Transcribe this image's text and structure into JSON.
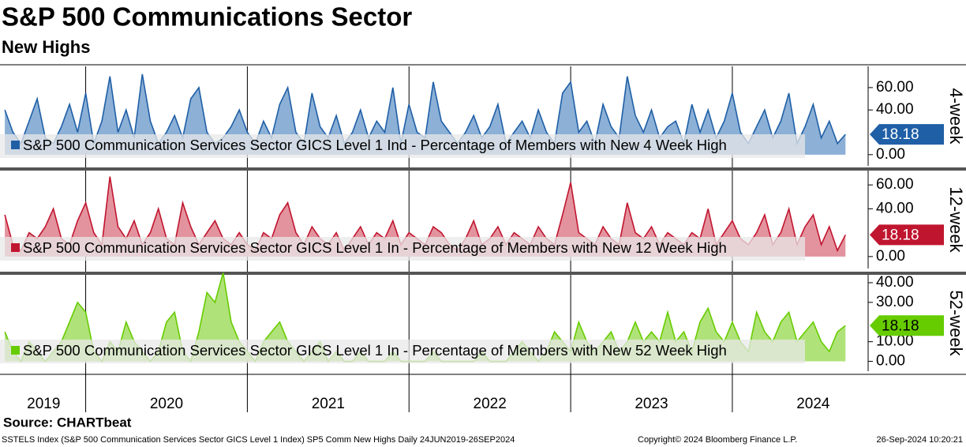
{
  "chart_data": {
    "type": "line",
    "title": "S&P 500 Communications Sector",
    "subtitle": "New Highs",
    "x": [
      2019.5,
      2019.55,
      2019.6,
      2019.65,
      2019.7,
      2019.75,
      2019.8,
      2019.85,
      2019.9,
      2019.95,
      2020,
      2020.05,
      2020.1,
      2020.15,
      2020.2,
      2020.25,
      2020.3,
      2020.35,
      2020.4,
      2020.45,
      2020.5,
      2020.55,
      2020.6,
      2020.65,
      2020.7,
      2020.75,
      2020.8,
      2020.85,
      2020.9,
      2020.95,
      2021,
      2021.05,
      2021.1,
      2021.15,
      2021.2,
      2021.25,
      2021.3,
      2021.35,
      2021.4,
      2021.45,
      2021.5,
      2021.55,
      2021.6,
      2021.65,
      2021.7,
      2021.75,
      2021.8,
      2021.85,
      2021.9,
      2021.95,
      2022,
      2022.05,
      2022.1,
      2022.15,
      2022.2,
      2022.25,
      2022.3,
      2022.35,
      2022.4,
      2022.45,
      2022.5,
      2022.55,
      2022.6,
      2022.65,
      2022.7,
      2022.75,
      2022.8,
      2022.85,
      2022.9,
      2022.95,
      2023,
      2023.05,
      2023.1,
      2023.15,
      2023.2,
      2023.25,
      2023.3,
      2023.35,
      2023.4,
      2023.45,
      2023.5,
      2023.55,
      2023.6,
      2023.65,
      2023.7,
      2023.75,
      2023.8,
      2023.85,
      2023.9,
      2023.95,
      2024,
      2024.05,
      2024.1,
      2024.15,
      2024.2,
      2024.25,
      2024.3,
      2024.35,
      2024.4,
      2024.45,
      2024.5,
      2024.55,
      2024.6,
      2024.65,
      2024.7
    ],
    "xlim": [
      2019.47,
      2024.84
    ],
    "xticks": [
      {
        "value": 2019.74,
        "label": "2019"
      },
      {
        "value": 2020.5,
        "label": "2020"
      },
      {
        "value": 2021.5,
        "label": "2021"
      },
      {
        "value": 2022.5,
        "label": "2022"
      },
      {
        "value": 2023.5,
        "label": "2023"
      },
      {
        "value": 2024.5,
        "label": "2024"
      }
    ],
    "year_lines": [
      2020,
      2021,
      2022,
      2023,
      2024
    ],
    "panels": [
      {
        "label": "4-week",
        "ylim": [
          -10,
          79
        ],
        "yticks": [
          {
            "value": 0,
            "label": "0.00"
          },
          {
            "value": 40,
            "label": "40.00"
          },
          {
            "value": 60,
            "label": "60.00"
          }
        ],
        "series": [
          {
            "name": "S&P 500 Communication Services Sector GICS Level 1 Ind - Percentage of Members with New 4 Week High",
            "color": "#1f5fa6",
            "fill_color": "#8cb0d6",
            "values": [
              40,
              20,
              10,
              30,
              50,
              15,
              10,
              25,
              45,
              20,
              55,
              10,
              30,
              70,
              20,
              40,
              15,
              72,
              30,
              10,
              20,
              35,
              15,
              50,
              60,
              20,
              10,
              15,
              25,
              40,
              20,
              10,
              30,
              15,
              45,
              60,
              20,
              10,
              55,
              25,
              15,
              35,
              10,
              20,
              40,
              15,
              30,
              20,
              60,
              10,
              45,
              20,
              15,
              65,
              30,
              20,
              10,
              20,
              35,
              15,
              25,
              45,
              10,
              20,
              30,
              15,
              40,
              20,
              10,
              55,
              65,
              20,
              30,
              10,
              45,
              25,
              15,
              70,
              35,
              20,
              40,
              15,
              25,
              30,
              10,
              45,
              20,
              40,
              15,
              30,
              55,
              20,
              10,
              25,
              40,
              15,
              30,
              55,
              10,
              25,
              45,
              15,
              30,
              10,
              18.18
            ]
          }
        ]
      },
      {
        "label": "12-week",
        "ylim": [
          -10,
          72
        ],
        "yticks": [
          {
            "value": 0,
            "label": "0.00"
          },
          {
            "value": 40,
            "label": "40.00"
          },
          {
            "value": 60,
            "label": "60.00"
          }
        ],
        "series": [
          {
            "name": "S&P 500 Communication Services Sector GICS Level 1 In - Percentage of Members with New 12 Week High",
            "color": "#c0152f",
            "fill_color": "#e3939e",
            "values": [
              35,
              10,
              5,
              20,
              15,
              25,
              40,
              15,
              10,
              30,
              45,
              20,
              10,
              67,
              25,
              15,
              30,
              10,
              20,
              40,
              15,
              10,
              45,
              25,
              10,
              20,
              30,
              15,
              10,
              20,
              10,
              5,
              20,
              15,
              35,
              45,
              20,
              10,
              25,
              15,
              10,
              20,
              5,
              15,
              25,
              10,
              20,
              15,
              30,
              10,
              20,
              15,
              10,
              25,
              20,
              10,
              5,
              15,
              30,
              10,
              15,
              25,
              10,
              20,
              15,
              10,
              25,
              15,
              10,
              35,
              62,
              20,
              15,
              10,
              25,
              15,
              10,
              45,
              20,
              15,
              25,
              10,
              20,
              15,
              10,
              20,
              15,
              40,
              10,
              20,
              30,
              15,
              10,
              20,
              35,
              10,
              20,
              40,
              10,
              25,
              35,
              10,
              25,
              5,
              18.18
            ]
          }
        ]
      },
      {
        "label": "52-week",
        "ylim": [
          -5,
          44
        ],
        "yticks": [
          {
            "value": 0,
            "label": "0.00"
          },
          {
            "value": 10,
            "label": "10.00"
          },
          {
            "value": 30,
            "label": "30.00"
          },
          {
            "value": 40,
            "label": "40.00"
          }
        ],
        "series": [
          {
            "name": "S&P 500 Communication Services Sector GICS Level 1 In - Percentage of Members with New 52 Week High",
            "color": "#66cc00",
            "fill_color": "#b0e27a",
            "values": [
              15,
              5,
              0,
              10,
              5,
              0,
              5,
              10,
              20,
              30,
              25,
              5,
              0,
              10,
              5,
              20,
              10,
              5,
              0,
              5,
              20,
              25,
              5,
              0,
              15,
              35,
              30,
              45,
              20,
              10,
              5,
              0,
              10,
              15,
              20,
              10,
              5,
              0,
              5,
              10,
              0,
              5,
              0,
              0,
              5,
              0,
              0,
              0,
              5,
              0,
              0,
              0,
              0,
              5,
              0,
              0,
              0,
              0,
              0,
              5,
              0,
              0,
              0,
              5,
              10,
              5,
              0,
              5,
              15,
              10,
              5,
              20,
              10,
              5,
              10,
              15,
              5,
              10,
              20,
              10,
              15,
              10,
              25,
              10,
              15,
              5,
              20,
              27,
              15,
              10,
              20,
              10,
              5,
              25,
              15,
              10,
              20,
              25,
              10,
              15,
              20,
              10,
              5,
              15,
              18.18
            ]
          }
        ]
      }
    ],
    "source": "Source: CHARTbeat",
    "footer": {
      "left": "SSTELS Index (S&P 500 Communication Services Sector GICS Level 1 Index) SP5 Comm New Highs  Daily 24JUN2019-26SEP2024",
      "center": "Copyright© 2024 Bloomberg Finance L.P.",
      "right": "26-Sep-2024 10:20:21"
    }
  }
}
